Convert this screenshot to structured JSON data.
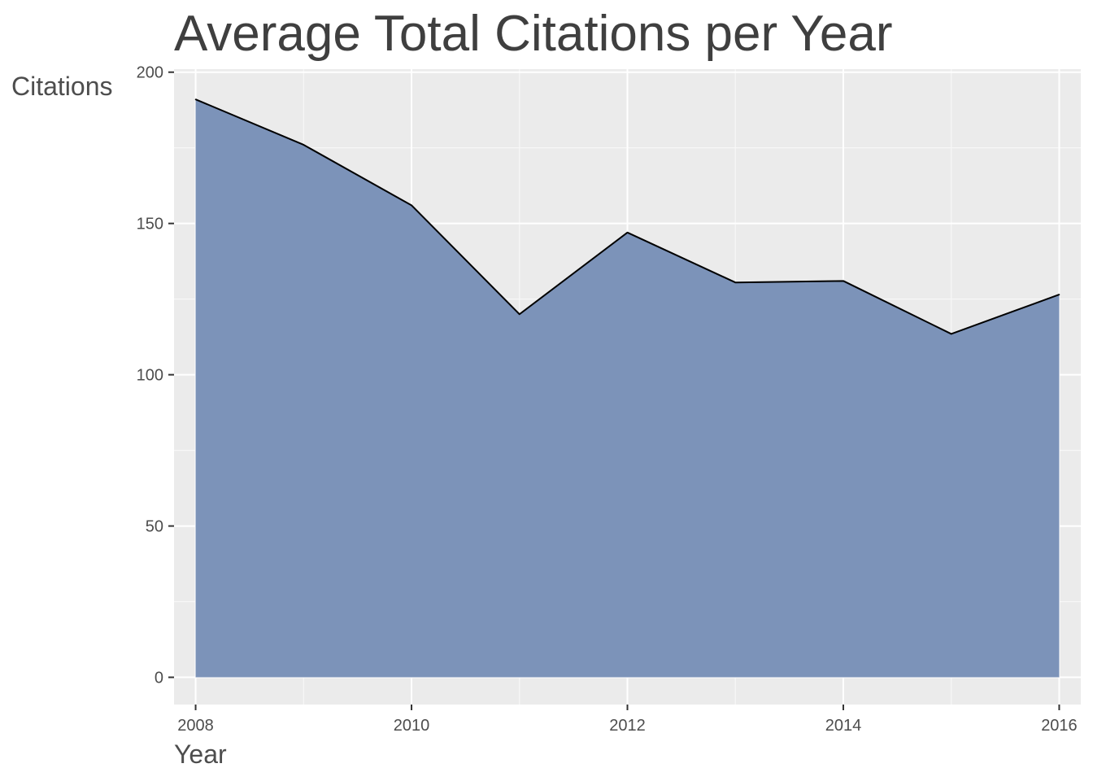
{
  "chart_data": {
    "type": "area",
    "title": "Average Total Citations per Year",
    "xlabel": "Year",
    "ylabel": "Citations",
    "x": [
      2008,
      2009,
      2010,
      2011,
      2012,
      2013,
      2014,
      2015,
      2016
    ],
    "series": [
      {
        "values": [
          191,
          176,
          156,
          120,
          147,
          130.5,
          131,
          113.5,
          126.5
        ]
      }
    ],
    "xlim": [
      2007.8,
      2016.2
    ],
    "ylim": [
      -9,
      201
    ],
    "xticks": [
      2008,
      2010,
      2012,
      2014,
      2016
    ],
    "yticks": [
      0,
      50,
      100,
      150,
      200
    ],
    "grid": true,
    "legend": "none",
    "colors": {
      "fill": "#7890B7",
      "line": "#000000",
      "panel": "#EBEBEB",
      "grid_major": "#FFFFFF",
      "grid_minor": "#F5F5F5",
      "text": "#4D4D4D",
      "title": "#3F3F3F"
    }
  }
}
